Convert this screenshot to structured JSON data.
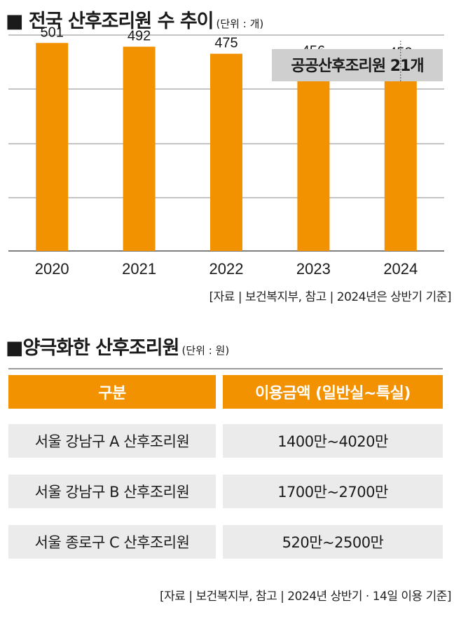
{
  "chart_section": {
    "title": "전국 산후조리원 수 추이",
    "unit": "(단위 : 개)",
    "source": "[자료 | 보건복지부, 참고 | 2024년은 상반기 기준]"
  },
  "chart_data": {
    "type": "bar",
    "categories": [
      "2020",
      "2021",
      "2022",
      "2023",
      "2024"
    ],
    "values": [
      501,
      492,
      475,
      456,
      452
    ],
    "ylim": [
      0,
      520
    ],
    "grid": true,
    "bar_color": "#f39200",
    "annotation": {
      "category": "2024",
      "text": "공공산후조리원 21개"
    }
  },
  "table_section": {
    "title": "양극화한 산후조리원",
    "unit": "(단위 : 원)",
    "source": "[자료 | 보건복지부, 참고 | 2024년 상반기 · 14일 이용 기준]"
  },
  "table": {
    "headers": [
      "구분",
      "이용금액 (일반실~특실)"
    ],
    "rows": [
      [
        "서울 강남구 A 산후조리원",
        "1400만~4020만"
      ],
      [
        "서울 강남구 B 산후조리원",
        "1700만~2700만"
      ],
      [
        "서울 종로구 C 산후조리원",
        "520만~2500만"
      ]
    ]
  },
  "colors": {
    "accent": "#f39200",
    "header_text": "#ffffff",
    "cell_bg": "#ebebeb",
    "annotation_bg": "#cfcfcf"
  }
}
